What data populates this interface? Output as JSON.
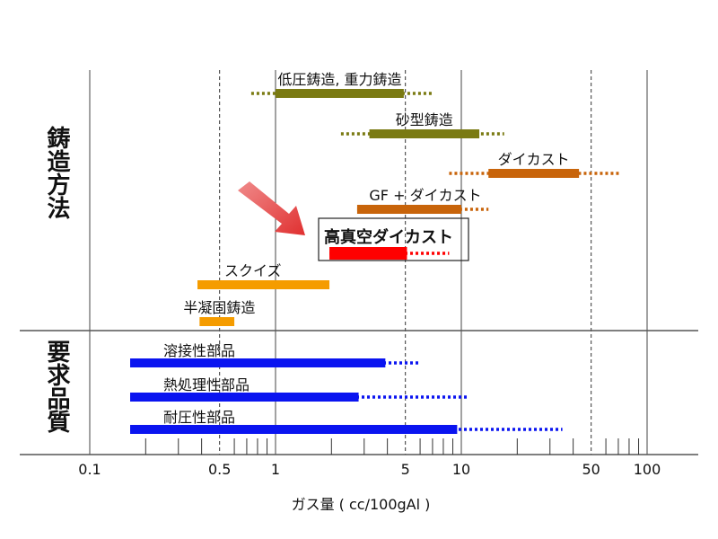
{
  "chart_data": {
    "type": "range-bar",
    "xlabel": "ガス量 ( cc/100gAl )",
    "xscale": "log",
    "xlim": [
      0.1,
      100
    ],
    "x_tick_labels": [
      "0.1",
      "0.5",
      "1",
      "5",
      "10",
      "50",
      "100"
    ],
    "x_tick_values": [
      0.1,
      0.5,
      1,
      5,
      10,
      50,
      100
    ],
    "dashed_gridlines": [
      0.5,
      5,
      50
    ],
    "solid_gridlines": [
      0.1,
      1,
      10,
      100
    ],
    "groups": [
      {
        "name": "鋳造方法",
        "series": [
          {
            "name": "低圧鋳造, 重力鋳造",
            "solid": [
              1,
              4.9
            ],
            "dotted": [
              0.74,
              7
            ],
            "color": "#7a7a12"
          },
          {
            "name": "砂型鋳造",
            "solid": [
              3.2,
              12.5
            ],
            "dotted": [
              2.25,
              17
            ],
            "color": "#7a7a12"
          },
          {
            "name": "ダイカスト",
            "solid": [
              14,
              43
            ],
            "dotted": [
              8.6,
              71
            ],
            "color": "#c8640a"
          },
          {
            "name": "GF + ダイカスト",
            "solid": [
              2.75,
              10
            ],
            "dotted": [
              2.75,
              14
            ],
            "color": "#c8640a"
          },
          {
            "name": "高真空ダイカスト",
            "solid": [
              1.95,
              5.1
            ],
            "dotted": [
              1.95,
              8.6
            ],
            "color": "#ff0000",
            "highlight": true
          },
          {
            "name": "スクイズ",
            "solid": [
              0.38,
              1.95
            ],
            "dotted": null,
            "color": "#f59c00"
          },
          {
            "name": "半凝固鋳造",
            "solid": [
              0.39,
              0.6
            ],
            "dotted": null,
            "color": "#f59c00"
          }
        ]
      },
      {
        "name": "要求品質",
        "series": [
          {
            "name": "溶接性部品",
            "solid": [
              0.165,
              3.9
            ],
            "dotted": [
              0.165,
              6
            ],
            "color": "#0a14f0"
          },
          {
            "name": "熱処理性部品",
            "solid": [
              0.165,
              2.8
            ],
            "dotted": [
              0.165,
              11
            ],
            "color": "#0a14f0"
          },
          {
            "name": "耐圧性部品",
            "solid": [
              0.165,
              9.5
            ],
            "dotted": [
              0.165,
              35
            ],
            "color": "#0a14f0"
          }
        ]
      }
    ]
  }
}
